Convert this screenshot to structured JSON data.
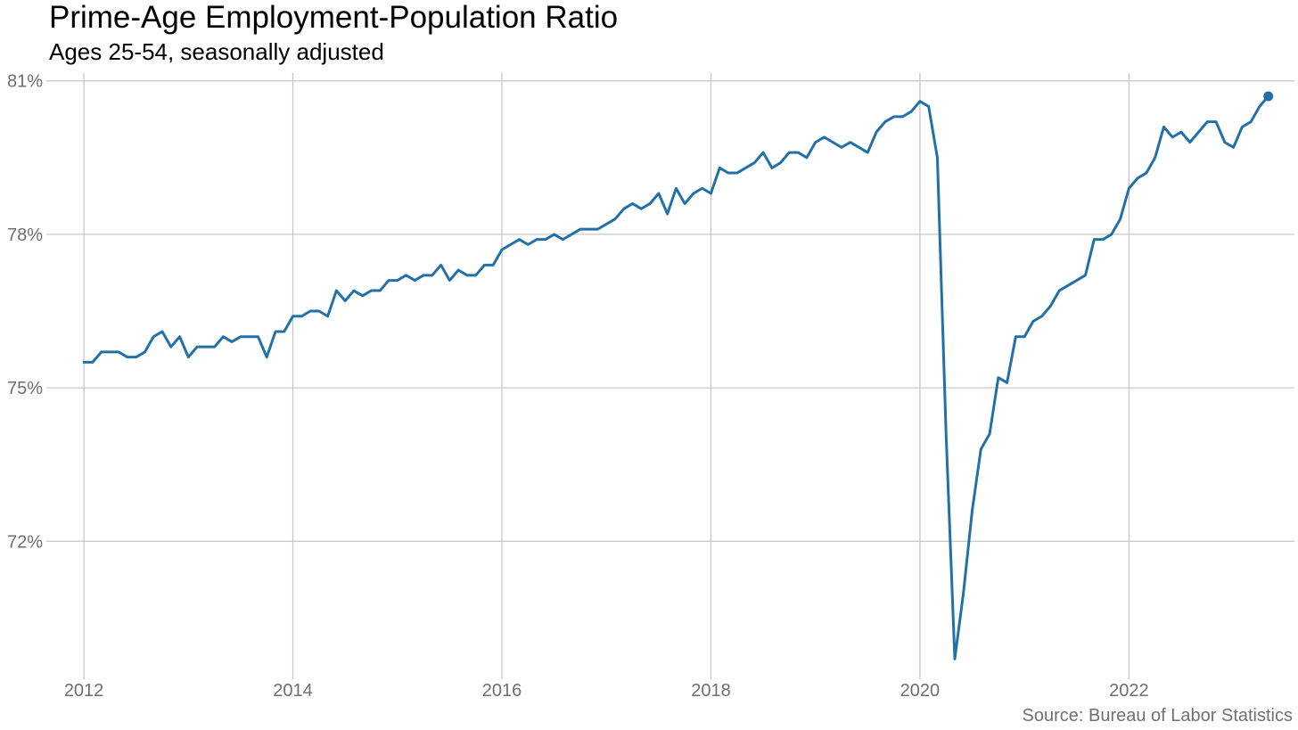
{
  "chart_data": {
    "type": "line",
    "title": "Prime-Age Employment-Population Ratio",
    "subtitle": "Ages 25-54, seasonally adjusted",
    "caption": "Source: Bureau of Labor Statistics",
    "xlabel": "",
    "ylabel": "",
    "x_start": "2012-01",
    "x_ticks": [
      "2012",
      "2014",
      "2016",
      "2018",
      "2020",
      "2022"
    ],
    "y_ticks": [
      "72%",
      "75%",
      "78%",
      "81%"
    ],
    "xlim": [
      "2011-09",
      "2023-08"
    ],
    "ylim": [
      69.6,
      81.1
    ],
    "grid": true,
    "legend": "none",
    "series": [
      {
        "color": "#2171a8",
        "endpoint_marker": true,
        "values": [
          75.5,
          75.5,
          75.7,
          75.7,
          75.7,
          75.6,
          75.6,
          75.7,
          76.0,
          76.1,
          75.8,
          76.0,
          75.6,
          75.8,
          75.8,
          75.8,
          76.0,
          75.9,
          76.0,
          76.0,
          76.0,
          75.6,
          76.1,
          76.1,
          76.4,
          76.4,
          76.5,
          76.5,
          76.4,
          76.9,
          76.7,
          76.9,
          76.8,
          76.9,
          76.9,
          77.1,
          77.1,
          77.2,
          77.1,
          77.2,
          77.2,
          77.4,
          77.1,
          77.3,
          77.2,
          77.2,
          77.4,
          77.4,
          77.7,
          77.8,
          77.9,
          77.8,
          77.9,
          77.9,
          78.0,
          77.9,
          78.0,
          78.1,
          78.1,
          78.1,
          78.2,
          78.3,
          78.5,
          78.6,
          78.5,
          78.6,
          78.8,
          78.4,
          78.9,
          78.6,
          78.8,
          78.9,
          78.8,
          79.3,
          79.2,
          79.2,
          79.3,
          79.4,
          79.6,
          79.3,
          79.4,
          79.6,
          79.6,
          79.5,
          79.8,
          79.9,
          79.8,
          79.7,
          79.8,
          79.7,
          79.6,
          80.0,
          80.2,
          80.3,
          80.3,
          80.4,
          80.6,
          80.5,
          79.5,
          74.1,
          69.7,
          71.0,
          72.6,
          73.8,
          74.1,
          75.2,
          75.1,
          76.0,
          76.0,
          76.3,
          76.4,
          76.6,
          76.9,
          77.0,
          77.1,
          77.2,
          77.9,
          77.9,
          78.0,
          78.3,
          78.9,
          79.1,
          79.2,
          79.5,
          80.1,
          79.9,
          80.0,
          79.8,
          80.0,
          80.2,
          80.2,
          79.8,
          79.7,
          80.1,
          80.2,
          80.5,
          80.7
        ]
      }
    ]
  }
}
